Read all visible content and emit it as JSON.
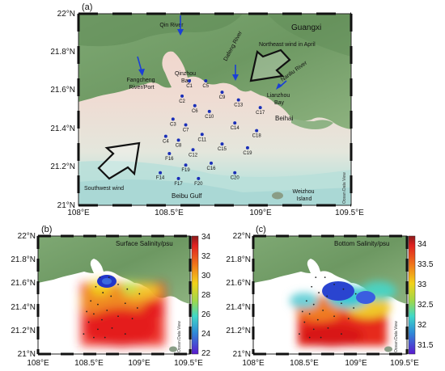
{
  "panel_a": {
    "panel_label": "(a)",
    "y_ticks": [
      "22°N",
      "21.8°N",
      "21.6°N",
      "21.4°N",
      "21.2°N",
      "21°N"
    ],
    "x_ticks": [
      "108°E",
      "108.5°E",
      "109°E",
      "109.5°E"
    ],
    "place_labels": {
      "guangxi": "Guangxi",
      "qin_river": "Qin River",
      "dafeng_river": "Dafeng River",
      "nanliu_river": "Nanliu River",
      "fangcheng": "Fangcheng\nRiver/Port",
      "qinzhou_bay": "Qinzhou\nBay",
      "lianzhou_bay": "Lianzhou\nBay",
      "beihai": "Beihai",
      "beibu_gulf": "Beibu Gulf",
      "weizhou": "Weizhou\nIsland",
      "ne_wind": "Northeast wind in April",
      "sw_wind": "Southwest wind"
    },
    "watermark": "Ocean Data View",
    "stations": [
      {
        "name": "C1",
        "lon": 108.61,
        "lat": 21.65
      },
      {
        "name": "C5",
        "lon": 108.7,
        "lat": 21.65
      },
      {
        "name": "C2",
        "lon": 108.57,
        "lat": 21.57
      },
      {
        "name": "C9",
        "lon": 108.79,
        "lat": 21.59
      },
      {
        "name": "C6",
        "lon": 108.64,
        "lat": 21.52
      },
      {
        "name": "C13",
        "lon": 108.88,
        "lat": 21.55
      },
      {
        "name": "C10",
        "lon": 108.72,
        "lat": 21.49
      },
      {
        "name": "C17",
        "lon": 109.0,
        "lat": 21.51
      },
      {
        "name": "C3",
        "lon": 108.52,
        "lat": 21.45
      },
      {
        "name": "C7",
        "lon": 108.59,
        "lat": 21.42
      },
      {
        "name": "C14",
        "lon": 108.86,
        "lat": 21.43
      },
      {
        "name": "C4",
        "lon": 108.48,
        "lat": 21.36
      },
      {
        "name": "C11",
        "lon": 108.68,
        "lat": 21.37
      },
      {
        "name": "C18",
        "lon": 108.98,
        "lat": 21.39
      },
      {
        "name": "C8",
        "lon": 108.55,
        "lat": 21.34
      },
      {
        "name": "C15",
        "lon": 108.79,
        "lat": 21.32
      },
      {
        "name": "C19",
        "lon": 108.93,
        "lat": 21.3
      },
      {
        "name": "C12",
        "lon": 108.63,
        "lat": 21.29
      },
      {
        "name": "F16",
        "lon": 108.5,
        "lat": 21.27
      },
      {
        "name": "F19",
        "lon": 108.59,
        "lat": 21.21
      },
      {
        "name": "C16",
        "lon": 108.73,
        "lat": 21.22
      },
      {
        "name": "C20",
        "lon": 108.86,
        "lat": 21.17
      },
      {
        "name": "F14",
        "lon": 108.45,
        "lat": 21.17
      },
      {
        "name": "F17",
        "lon": 108.55,
        "lat": 21.14
      },
      {
        "name": "F20",
        "lon": 108.66,
        "lat": 21.14
      }
    ]
  },
  "panel_b": {
    "panel_label": "(b)",
    "title": "Surface Salinity/psu",
    "y_ticks": [
      "22°N",
      "21.8°N",
      "21.6°N",
      "21.4°N",
      "21.2°N",
      "21°N"
    ],
    "x_ticks": [
      "108°E",
      "108.5°E",
      "109°E",
      "109.5°E"
    ],
    "colorbar_ticks": [
      "34",
      "32",
      "30",
      "28",
      "26",
      "24",
      "22"
    ],
    "colorbar_range": [
      22,
      34
    ],
    "watermark": "Ocean Data View"
  },
  "panel_c": {
    "panel_label": "(c)",
    "title": "Bottom Salinity/psu",
    "y_ticks": [
      "22°N",
      "21.8°N",
      "21.6°N",
      "21.4°N",
      "21.2°N",
      "21°N"
    ],
    "x_ticks": [
      "108°E",
      "108.5°E",
      "109°E",
      "109.5°E"
    ],
    "colorbar_ticks": [
      "34",
      "33.5",
      "33",
      "32.5",
      "32",
      "31.5"
    ],
    "colorbar_range": [
      31.3,
      34.2
    ],
    "watermark": "Ocean Data View"
  },
  "colors": {
    "land_dark": "#6f9a64",
    "land_light": "#9ab98d",
    "sea_shallow": "#f1d4cc",
    "sea_mid": "#ece0d8",
    "sea_deep": "#bfe0dc",
    "station_dot": "#1a2fb8",
    "arrow_blue": "#1a3fd6"
  }
}
